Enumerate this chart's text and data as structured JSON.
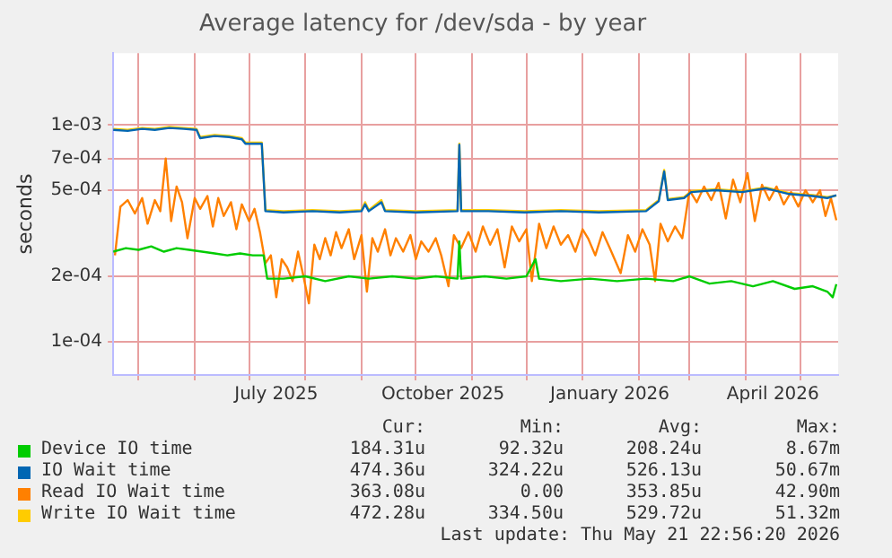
{
  "chart_data": {
    "type": "line",
    "title": "Average latency for /dev/sda - by year",
    "ylabel": "seconds",
    "log": "y",
    "grid": true,
    "legend": "bottom",
    "marker": "none",
    "line_style": "solid",
    "xlim": [
      "2025-04-17",
      "2026-05-22"
    ],
    "xticks": [
      {
        "value": "2025-05-01",
        "label": null
      },
      {
        "value": "2025-06-01",
        "label": null
      },
      {
        "value": "2025-07-01",
        "label": null
      },
      {
        "value": "2025-07-16",
        "label": "July 2025"
      },
      {
        "value": "2025-08-01",
        "label": null
      },
      {
        "value": "2025-09-01",
        "label": null
      },
      {
        "value": "2025-10-01",
        "label": null
      },
      {
        "value": "2025-10-16",
        "label": "October 2025"
      },
      {
        "value": "2025-11-01",
        "label": null
      },
      {
        "value": "2025-12-01",
        "label": null
      },
      {
        "value": "2026-01-01",
        "label": null
      },
      {
        "value": "2026-01-16",
        "label": "January 2026"
      },
      {
        "value": "2026-02-01",
        "label": null
      },
      {
        "value": "2026-03-01",
        "label": null
      },
      {
        "value": "2026-04-01",
        "label": null
      },
      {
        "value": "2026-04-16",
        "label": "April 2026"
      },
      {
        "value": "2026-05-01",
        "label": null
      }
    ],
    "ylim": [
      7.2e-05,
      0.00215
    ],
    "yticks": [
      {
        "value": 0.0001,
        "label": "1e-04"
      },
      {
        "value": 0.0002,
        "label": "2e-04"
      },
      {
        "value": 0.0005,
        "label": "5e-04"
      },
      {
        "value": 0.0007,
        "label": "7e-04"
      },
      {
        "value": 0.001,
        "label": "1e-03"
      }
    ],
    "annotations": [
      "Cur:",
      "Min:",
      "Avg:",
      "Max:",
      "184.31u",
      "92.32u",
      "208.24u",
      "8.67m",
      "474.36u",
      "324.22u",
      "526.13u",
      "50.67m",
      "363.08u",
      "0.00",
      "353.85u",
      "42.90m",
      "472.28u",
      "334.50u",
      "529.72u",
      "51.32m",
      "Last update: Thu May 21 22:56:20 2026"
    ],
    "series": [
      {
        "name": "Device IO time",
        "color": "#00cc00",
        "x": [
          "2025-04-17",
          "2025-04-24",
          "2025-05-01",
          "2025-05-08",
          "2025-05-15",
          "2025-05-22",
          "2025-05-29",
          "2025-06-05",
          "2025-06-12",
          "2025-06-19",
          "2025-06-26",
          "2025-07-03",
          "2025-07-09",
          "2025-07-11",
          "2025-07-20",
          "2025-08-01",
          "2025-08-12",
          "2025-08-25",
          "2025-09-05",
          "2025-09-18",
          "2025-10-01",
          "2025-10-12",
          "2025-10-24",
          "2025-10-25",
          "2025-10-26",
          "2025-11-08",
          "2025-11-20",
          "2025-12-01",
          "2025-12-06",
          "2025-12-08",
          "2025-12-20",
          "2026-01-05",
          "2026-01-20",
          "2026-02-05",
          "2026-02-20",
          "2026-03-01",
          "2026-03-12",
          "2026-03-24",
          "2026-04-05",
          "2026-04-16",
          "2026-04-28",
          "2026-05-08",
          "2026-05-16",
          "2026-05-19",
          "2026-05-21"
        ],
        "values": [
          0.00026,
          0.00027,
          0.000265,
          0.000275,
          0.00026,
          0.00027,
          0.000265,
          0.00026,
          0.000255,
          0.00025,
          0.000255,
          0.00025,
          0.00025,
          0.000195,
          0.000195,
          0.0002,
          0.00019,
          0.0002,
          0.000195,
          0.0002,
          0.000195,
          0.0002,
          0.000195,
          0.00029,
          0.000195,
          0.0002,
          0.000195,
          0.0002,
          0.00024,
          0.000195,
          0.00019,
          0.000195,
          0.00019,
          0.000195,
          0.00019,
          0.0002,
          0.000185,
          0.00019,
          0.00018,
          0.00019,
          0.000175,
          0.00018,
          0.00017,
          0.00016,
          0.000184
        ]
      },
      {
        "name": "IO Wait time",
        "color": "#0066b3",
        "x": [
          "2025-04-17",
          "2025-04-25",
          "2025-05-03",
          "2025-05-10",
          "2025-05-18",
          "2025-05-26",
          "2025-06-02",
          "2025-06-04",
          "2025-06-12",
          "2025-06-20",
          "2025-06-27",
          "2025-06-29",
          "2025-07-08",
          "2025-07-10",
          "2025-07-20",
          "2025-08-05",
          "2025-08-20",
          "2025-09-01",
          "2025-09-03",
          "2025-09-05",
          "2025-09-12",
          "2025-09-14",
          "2025-10-01",
          "2025-10-24",
          "2025-10-25",
          "2025-10-26",
          "2025-11-10",
          "2025-11-30",
          "2025-12-20",
          "2026-01-10",
          "2026-02-05",
          "2026-02-12",
          "2026-02-15",
          "2026-02-17",
          "2026-02-26",
          "2026-03-02",
          "2026-03-15",
          "2026-03-30",
          "2026-04-12",
          "2026-04-25",
          "2026-05-08",
          "2026-05-16",
          "2026-05-21"
        ],
        "values": [
          0.00095,
          0.00094,
          0.00096,
          0.00095,
          0.00097,
          0.00096,
          0.00095,
          0.00087,
          0.00089,
          0.00088,
          0.00086,
          0.00082,
          0.00082,
          0.0004,
          0.000395,
          0.0004,
          0.000395,
          0.0004,
          0.00043,
          0.0004,
          0.00044,
          0.0004,
          0.000395,
          0.0004,
          0.00081,
          0.0004,
          0.0004,
          0.000395,
          0.0004,
          0.000395,
          0.0004,
          0.000445,
          0.00061,
          0.00045,
          0.00046,
          0.00049,
          0.0005,
          0.00049,
          0.00051,
          0.00048,
          0.00047,
          0.00046,
          0.000474
        ]
      },
      {
        "name": "Read IO Wait time",
        "color": "#ff8000",
        "x": [
          "2025-04-18",
          "2025-04-21",
          "2025-04-25",
          "2025-04-29",
          "2025-05-03",
          "2025-05-06",
          "2025-05-10",
          "2025-05-13",
          "2025-05-16",
          "2025-05-19",
          "2025-05-22",
          "2025-05-25",
          "2025-05-28",
          "2025-06-01",
          "2025-06-04",
          "2025-06-08",
          "2025-06-11",
          "2025-06-14",
          "2025-06-17",
          "2025-06-21",
          "2025-06-24",
          "2025-06-27",
          "2025-07-01",
          "2025-07-04",
          "2025-07-07",
          "2025-07-10",
          "2025-07-13",
          "2025-07-16",
          "2025-07-19",
          "2025-07-22",
          "2025-07-25",
          "2025-07-28",
          "2025-07-31",
          "2025-08-03",
          "2025-08-06",
          "2025-08-09",
          "2025-08-12",
          "2025-08-15",
          "2025-08-18",
          "2025-08-21",
          "2025-08-25",
          "2025-08-28",
          "2025-09-01",
          "2025-09-04",
          "2025-09-07",
          "2025-09-10",
          "2025-09-14",
          "2025-09-17",
          "2025-09-20",
          "2025-09-24",
          "2025-09-28",
          "2025-10-01",
          "2025-10-04",
          "2025-10-08",
          "2025-10-12",
          "2025-10-15",
          "2025-10-19",
          "2025-10-22",
          "2025-10-26",
          "2025-10-30",
          "2025-11-03",
          "2025-11-07",
          "2025-11-11",
          "2025-11-15",
          "2025-11-19",
          "2025-11-23",
          "2025-11-27",
          "2025-12-01",
          "2025-12-04",
          "2025-12-08",
          "2025-12-12",
          "2025-12-16",
          "2025-12-20",
          "2025-12-24",
          "2025-12-28",
          "2026-01-01",
          "2026-01-04",
          "2026-01-08",
          "2026-01-12",
          "2026-01-16",
          "2026-01-22",
          "2026-01-26",
          "2026-01-30",
          "2026-02-03",
          "2026-02-07",
          "2026-02-10",
          "2026-02-13",
          "2026-02-17",
          "2026-02-21",
          "2026-02-25",
          "2026-03-01",
          "2026-03-05",
          "2026-03-09",
          "2026-03-13",
          "2026-03-17",
          "2026-03-21",
          "2026-03-25",
          "2026-03-29",
          "2026-04-02",
          "2026-04-06",
          "2026-04-10",
          "2026-04-14",
          "2026-04-18",
          "2026-04-22",
          "2026-04-26",
          "2026-04-30",
          "2026-05-04",
          "2026-05-08",
          "2026-05-12",
          "2026-05-15",
          "2026-05-18",
          "2026-05-21"
        ],
        "values": [
          0.00025,
          0.00042,
          0.00045,
          0.00039,
          0.00046,
          0.00035,
          0.00045,
          0.0004,
          0.0007,
          0.00036,
          0.00052,
          0.00044,
          0.0003,
          0.00046,
          0.00041,
          0.00047,
          0.00034,
          0.00046,
          0.00038,
          0.00044,
          0.00033,
          0.00043,
          0.00036,
          0.00041,
          0.00032,
          0.00023,
          0.00025,
          0.00016,
          0.00024,
          0.00022,
          0.00019,
          0.00026,
          0.0002,
          0.00015,
          0.00028,
          0.00024,
          0.0003,
          0.00025,
          0.00032,
          0.00027,
          0.00033,
          0.00024,
          0.00031,
          0.00017,
          0.0003,
          0.00026,
          0.00033,
          0.00025,
          0.0003,
          0.00026,
          0.00031,
          0.00024,
          0.00029,
          0.00026,
          0.0003,
          0.00025,
          0.00018,
          0.00031,
          0.00027,
          0.00032,
          0.00026,
          0.00034,
          0.00028,
          0.00033,
          0.00022,
          0.00034,
          0.00029,
          0.00033,
          0.00019,
          0.00035,
          0.00027,
          0.00034,
          0.00028,
          0.00031,
          0.00026,
          0.00033,
          0.0003,
          0.00025,
          0.00032,
          0.00027,
          0.000207,
          0.00031,
          0.00026,
          0.00033,
          0.00028,
          0.00019,
          0.00035,
          0.00029,
          0.00034,
          0.0003,
          0.0005,
          0.00044,
          0.00052,
          0.00045,
          0.00054,
          0.00037,
          0.00056,
          0.00044,
          0.0006,
          0.00036,
          0.00053,
          0.00045,
          0.00052,
          0.00043,
          0.00049,
          0.00042,
          0.0005,
          0.00044,
          0.0005,
          0.00038,
          0.00046,
          0.000363
        ]
      },
      {
        "name": "Write IO Wait time",
        "color": "#ffcc00",
        "x": [
          "2025-04-17",
          "2025-04-25",
          "2025-05-03",
          "2025-05-10",
          "2025-05-18",
          "2025-05-26",
          "2025-06-02",
          "2025-06-04",
          "2025-06-12",
          "2025-06-20",
          "2025-06-27",
          "2025-06-29",
          "2025-07-08",
          "2025-07-10",
          "2025-07-20",
          "2025-08-05",
          "2025-08-20",
          "2025-09-01",
          "2025-09-03",
          "2025-09-05",
          "2025-09-12",
          "2025-09-14",
          "2025-10-01",
          "2025-10-24",
          "2025-10-25",
          "2025-10-26",
          "2025-11-10",
          "2025-11-30",
          "2025-12-20",
          "2026-01-10",
          "2026-02-05",
          "2026-02-12",
          "2026-02-15",
          "2026-02-17",
          "2026-02-26",
          "2026-03-02",
          "2026-03-15",
          "2026-03-30",
          "2026-04-12",
          "2026-04-25",
          "2026-05-08",
          "2026-05-16",
          "2026-05-21"
        ],
        "values": [
          0.00096,
          0.00095,
          0.00097,
          0.00096,
          0.00098,
          0.00097,
          0.00096,
          0.00088,
          0.0009,
          0.00089,
          0.00087,
          0.00083,
          0.00083,
          0.000405,
          0.0004,
          0.000405,
          0.0004,
          0.000405,
          0.00044,
          0.000405,
          0.00045,
          0.000405,
          0.0004,
          0.000405,
          0.00082,
          0.000405,
          0.000405,
          0.0004,
          0.000405,
          0.0004,
          0.000405,
          0.00045,
          0.00062,
          0.000455,
          0.000465,
          0.000495,
          0.000505,
          0.000495,
          0.000515,
          0.000485,
          0.000475,
          0.000465,
          0.000472
        ]
      }
    ]
  }
}
